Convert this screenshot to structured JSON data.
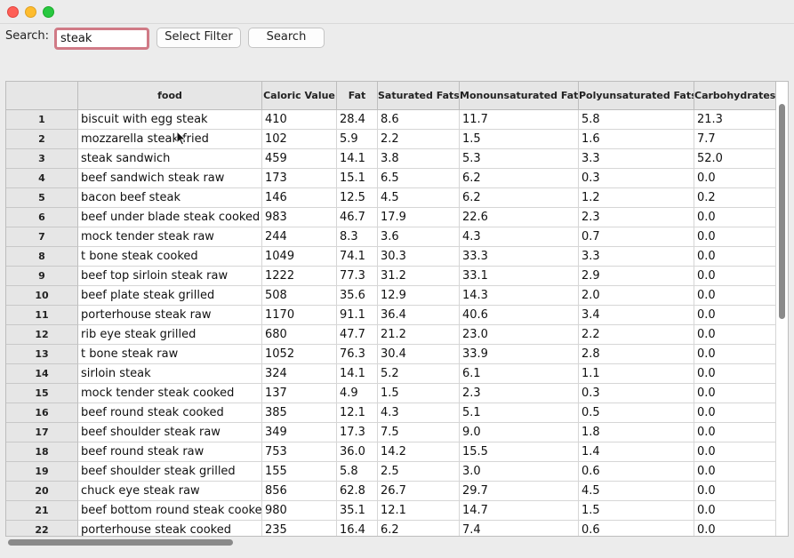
{
  "window": {
    "title": ""
  },
  "toolbar": {
    "search_label": "Search:",
    "search_value": "steak",
    "filter_label": "Select Filter",
    "search_button": "Search"
  },
  "table": {
    "columns": [
      "food",
      "Caloric Value",
      "Fat",
      "Saturated Fats",
      "Monounsaturated Fats",
      "Polyunsaturated Fats",
      "Carbohydrates"
    ],
    "rows": [
      [
        "1",
        "biscuit with egg steak",
        "410",
        "28.4",
        "8.6",
        "11.7",
        "5.8",
        "21.3"
      ],
      [
        "2",
        "mozzarella steak fried",
        "102",
        "5.9",
        "2.2",
        "1.5",
        "1.6",
        "7.7"
      ],
      [
        "3",
        "steak sandwich",
        "459",
        "14.1",
        "3.8",
        "5.3",
        "3.3",
        "52.0"
      ],
      [
        "4",
        "beef sandwich steak raw",
        "173",
        "15.1",
        "6.5",
        "6.2",
        "0.3",
        "0.0"
      ],
      [
        "5",
        "bacon beef steak",
        "146",
        "12.5",
        "4.5",
        "6.2",
        "1.2",
        "0.2"
      ],
      [
        "6",
        "beef under blade steak cooked",
        "983",
        "46.7",
        "17.9",
        "22.6",
        "2.3",
        "0.0"
      ],
      [
        "7",
        "mock tender steak raw",
        "244",
        "8.3",
        "3.6",
        "4.3",
        "0.7",
        "0.0"
      ],
      [
        "8",
        "t bone steak cooked",
        "1049",
        "74.1",
        "30.3",
        "33.3",
        "3.3",
        "0.0"
      ],
      [
        "9",
        "beef top sirloin steak raw",
        "1222",
        "77.3",
        "31.2",
        "33.1",
        "2.9",
        "0.0"
      ],
      [
        "10",
        "beef plate steak grilled",
        "508",
        "35.6",
        "12.9",
        "14.3",
        "2.0",
        "0.0"
      ],
      [
        "11",
        "porterhouse steak raw",
        "1170",
        "91.1",
        "36.4",
        "40.6",
        "3.4",
        "0.0"
      ],
      [
        "12",
        "rib eye steak grilled",
        "680",
        "47.7",
        "21.2",
        "23.0",
        "2.2",
        "0.0"
      ],
      [
        "13",
        "t bone steak raw",
        "1052",
        "76.3",
        "30.4",
        "33.9",
        "2.8",
        "0.0"
      ],
      [
        "14",
        "sirloin steak",
        "324",
        "14.1",
        "5.2",
        "6.1",
        "1.1",
        "0.0"
      ],
      [
        "15",
        "mock tender steak cooked",
        "137",
        "4.9",
        "1.5",
        "2.3",
        "0.3",
        "0.0"
      ],
      [
        "16",
        "beef round steak cooked",
        "385",
        "12.1",
        "4.3",
        "5.1",
        "0.5",
        "0.0"
      ],
      [
        "17",
        "beef shoulder steak raw",
        "349",
        "17.3",
        "7.5",
        "9.0",
        "1.8",
        "0.0"
      ],
      [
        "18",
        "beef round steak raw",
        "753",
        "36.0",
        "14.2",
        "15.5",
        "1.4",
        "0.0"
      ],
      [
        "19",
        "beef shoulder steak grilled",
        "155",
        "5.8",
        "2.5",
        "3.0",
        "0.6",
        "0.0"
      ],
      [
        "20",
        "chuck eye steak raw",
        "856",
        "62.8",
        "26.7",
        "29.7",
        "4.5",
        "0.0"
      ],
      [
        "21",
        "beef bottom round steak cooked",
        "980",
        "35.1",
        "12.1",
        "14.7",
        "1.5",
        "0.0"
      ],
      [
        "22",
        "porterhouse steak cooked",
        "235",
        "16.4",
        "6.2",
        "7.4",
        "0.6",
        "0.0"
      ]
    ]
  }
}
